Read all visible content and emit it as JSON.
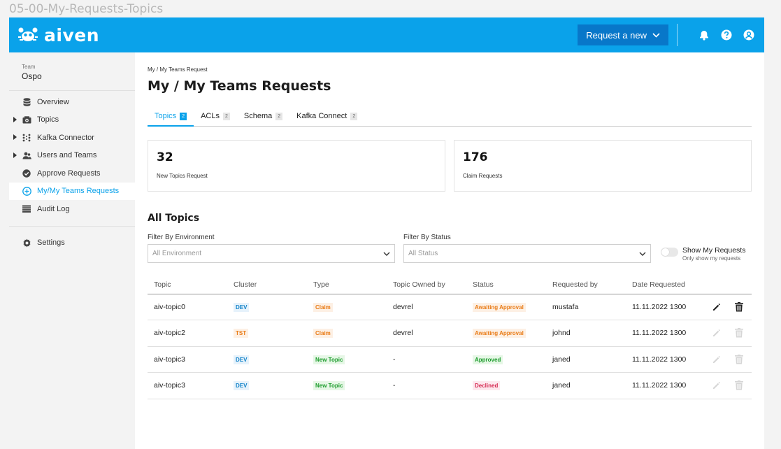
{
  "frame_title": "05-00-My-Requests-Topics",
  "header": {
    "logo_text": "aiven",
    "request_button": "Request a new",
    "brand_color": "#0aa2ea"
  },
  "sidebar": {
    "team_label": "Team",
    "team_name": "Ospo",
    "items": [
      {
        "label": "Overview",
        "icon": "database-icon",
        "expandable": false,
        "active": false
      },
      {
        "label": "Topics",
        "icon": "topics-icon",
        "expandable": true,
        "active": false
      },
      {
        "label": "Kafka Connector",
        "icon": "connector-icon",
        "expandable": true,
        "active": false
      },
      {
        "label": "Users and Teams",
        "icon": "users-icon",
        "expandable": true,
        "active": false
      },
      {
        "label": "Approve Requests",
        "icon": "check-circle-icon",
        "expandable": false,
        "active": false
      },
      {
        "label": "My/My Teams Requests",
        "icon": "plus-circle-icon",
        "expandable": false,
        "active": true
      },
      {
        "label": "Audit Log",
        "icon": "list-icon",
        "expandable": false,
        "active": false
      }
    ],
    "settings_label": "Settings"
  },
  "main": {
    "breadcrumb": "My / My Teams Request",
    "title": "My / My Teams Requests",
    "tabs": [
      {
        "label": "Topics",
        "count": "2",
        "active": true
      },
      {
        "label": "ACLs",
        "count": "2",
        "active": false
      },
      {
        "label": "Schema",
        "count": "2",
        "active": false
      },
      {
        "label": "Kafka Connect",
        "count": "2",
        "active": false
      }
    ],
    "stats": [
      {
        "value": "32",
        "label": "New Topics Request"
      },
      {
        "value": "176",
        "label": "Claim Requests"
      }
    ],
    "section_title": "All Topics",
    "filters": {
      "environment_label": "Filter By Environment",
      "environment_placeholder": "All Environment",
      "status_label": "Filter By Status",
      "status_placeholder": "All Status",
      "toggle_title": "Show My Requests",
      "toggle_sub": "Only show my requests"
    },
    "table": {
      "columns": [
        "Topic",
        "Cluster",
        "Type",
        "Topic Owned by",
        "Status",
        "Requested by",
        "Date Requested"
      ],
      "rows": [
        {
          "topic": "aiv-topic0",
          "cluster": "DEV",
          "type": "Claim",
          "owner": "devrel",
          "status": "Awaiting Approval",
          "requested_by": "mustafa",
          "date": "11.11.2022 1300",
          "actions_enabled": true
        },
        {
          "topic": "aiv-topic2",
          "cluster": "TST",
          "type": "Claim",
          "owner": "devrel",
          "status": "Awaiting Approval",
          "requested_by": "johnd",
          "date": "11.11.2022 1300",
          "actions_enabled": false
        },
        {
          "topic": "aiv-topic3",
          "cluster": "DEV",
          "type": "New Topic",
          "owner": "-",
          "status": "Approved",
          "requested_by": "janed",
          "date": "11.11.2022 1300",
          "actions_enabled": false
        },
        {
          "topic": "aiv-topic3",
          "cluster": "DEV",
          "type": "New Topic",
          "owner": "-",
          "status": "Declined",
          "requested_by": "janed",
          "date": "11.11.2022 1300",
          "actions_enabled": false
        }
      ]
    }
  }
}
